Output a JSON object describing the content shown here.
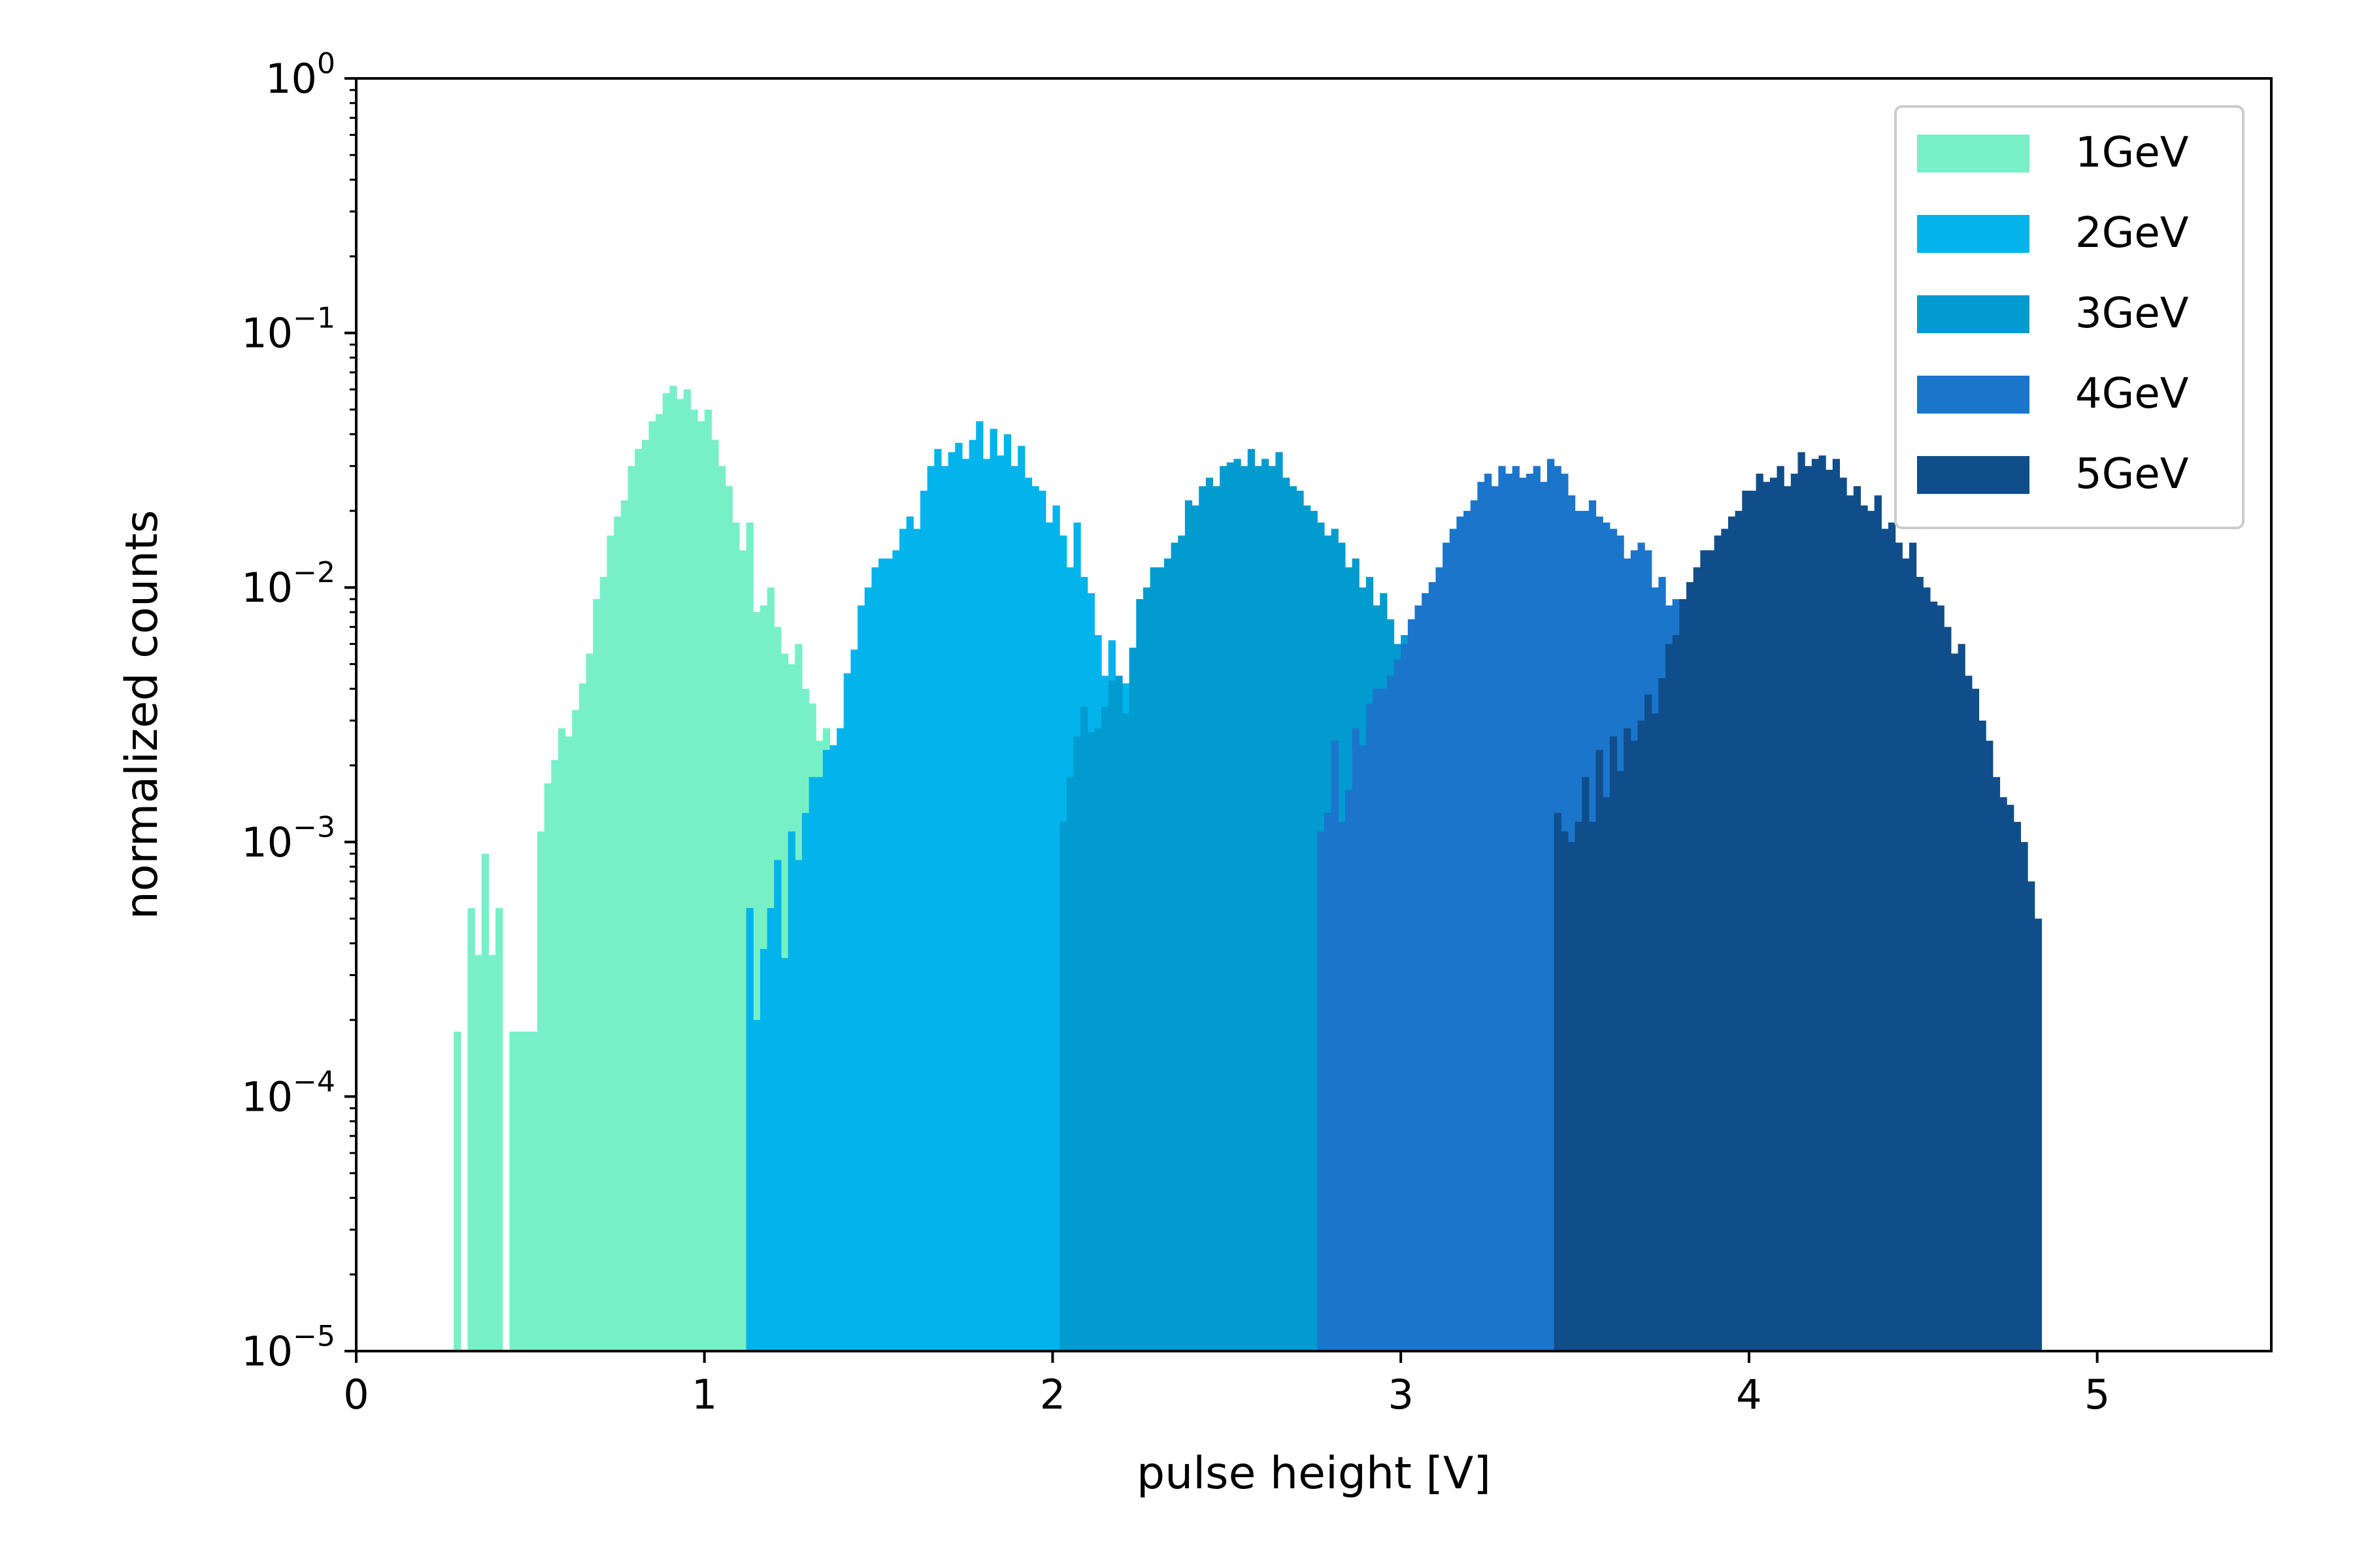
{
  "chart_data": {
    "type": "histogram",
    "title": "",
    "xlabel": "pulse height [V]",
    "ylabel": "normalized counts",
    "xlim": [
      0,
      5.5
    ],
    "ylim": [
      1e-05,
      1
    ],
    "yscale": "log",
    "grid": false,
    "legend_position": "top-right",
    "xticks": [
      0,
      1,
      2,
      3,
      4,
      5
    ],
    "xtick_labels": [
      "0",
      "1",
      "2",
      "3",
      "4",
      "5"
    ],
    "yticks": [
      1e-05,
      0.0001,
      0.001,
      0.01,
      0.1,
      1
    ],
    "ytick_labels": [
      {
        "base": "10",
        "exp": "−5"
      },
      {
        "base": "10",
        "exp": "−4"
      },
      {
        "base": "10",
        "exp": "−3"
      },
      {
        "base": "10",
        "exp": "−2"
      },
      {
        "base": "10",
        "exp": "−1"
      },
      {
        "base": "10",
        "exp": "0"
      }
    ],
    "series": [
      {
        "name": "1GeV",
        "color": "#77f0c8",
        "bin_width": 0.02,
        "bins_start": [
          0.28,
          0.32,
          0.34,
          0.36,
          0.38,
          0.4,
          0.44,
          0.46,
          0.48,
          0.5,
          0.52,
          0.54,
          0.56,
          0.58,
          0.6,
          0.62,
          0.64,
          0.66,
          0.68,
          0.7,
          0.72,
          0.74,
          0.76,
          0.78,
          0.8,
          0.82,
          0.84,
          0.86,
          0.88,
          0.9,
          0.92,
          0.94,
          0.96,
          0.98,
          1.0,
          1.02,
          1.04,
          1.06,
          1.08,
          1.1,
          1.12,
          1.14,
          1.16,
          1.18,
          1.2,
          1.22,
          1.24,
          1.26,
          1.28,
          1.3,
          1.32,
          1.34,
          1.36,
          1.38
        ],
        "counts": [
          0.00018,
          0.00055,
          0.00036,
          0.0009,
          0.00036,
          0.00055,
          0.00018,
          0.00018,
          0.00018,
          0.00018,
          0.0011,
          0.0017,
          0.0021,
          0.0028,
          0.0026,
          0.0033,
          0.0042,
          0.0055,
          0.009,
          0.011,
          0.016,
          0.019,
          0.022,
          0.03,
          0.035,
          0.038,
          0.045,
          0.048,
          0.058,
          0.062,
          0.055,
          0.06,
          0.05,
          0.045,
          0.05,
          0.038,
          0.03,
          0.025,
          0.018,
          0.014,
          0.018,
          0.008,
          0.0085,
          0.01,
          0.007,
          0.0055,
          0.005,
          0.006,
          0.004,
          0.0035,
          0.0025,
          0.0028,
          0.0022,
          0.0015
        ]
      },
      {
        "name": "2GeV",
        "color": "#03b3ec",
        "bin_width": 0.02,
        "bins_start": [
          1.12,
          1.14,
          1.16,
          1.18,
          1.2,
          1.22,
          1.24,
          1.26,
          1.28,
          1.3,
          1.32,
          1.34,
          1.36,
          1.38,
          1.4,
          1.42,
          1.44,
          1.46,
          1.48,
          1.5,
          1.52,
          1.54,
          1.56,
          1.58,
          1.6,
          1.62,
          1.64,
          1.66,
          1.68,
          1.7,
          1.72,
          1.74,
          1.76,
          1.78,
          1.8,
          1.82,
          1.84,
          1.86,
          1.88,
          1.9,
          1.92,
          1.94,
          1.96,
          1.98,
          2.0,
          2.02,
          2.04,
          2.06,
          2.08,
          2.1,
          2.12,
          2.14,
          2.16,
          2.18,
          2.2,
          2.22,
          2.24,
          2.26,
          2.28,
          2.3,
          2.32,
          2.34,
          2.36,
          2.38,
          2.4,
          2.42,
          2.44,
          2.46,
          2.48,
          2.5,
          2.52
        ],
        "counts": [
          0.00055,
          0.0002,
          0.00038,
          0.00055,
          0.00085,
          0.00035,
          0.0011,
          0.00085,
          0.0013,
          0.0018,
          0.0018,
          0.0023,
          0.0024,
          0.0028,
          0.0046,
          0.0057,
          0.0085,
          0.01,
          0.012,
          0.013,
          0.013,
          0.014,
          0.017,
          0.019,
          0.017,
          0.024,
          0.03,
          0.035,
          0.03,
          0.034,
          0.037,
          0.032,
          0.038,
          0.045,
          0.032,
          0.042,
          0.033,
          0.04,
          0.03,
          0.036,
          0.027,
          0.025,
          0.024,
          0.018,
          0.021,
          0.016,
          0.012,
          0.018,
          0.011,
          0.0095,
          0.0065,
          0.0045,
          0.0062,
          0.0032,
          0.0042,
          0.0035,
          0.0028,
          0.0028,
          0.0025,
          0.0026,
          0.0022,
          0.0019,
          0.0018,
          0.0013,
          0.0015,
          0.0012,
          0.0011,
          0.0012,
          0.0009,
          0.0008,
          0.0007
        ]
      },
      {
        "name": "3GeV",
        "color": "#029bd0",
        "bin_width": 0.02,
        "bins_start": [
          2.02,
          2.04,
          2.06,
          2.08,
          2.1,
          2.12,
          2.14,
          2.16,
          2.18,
          2.2,
          2.22,
          2.24,
          2.26,
          2.28,
          2.3,
          2.32,
          2.34,
          2.36,
          2.38,
          2.4,
          2.42,
          2.44,
          2.46,
          2.48,
          2.5,
          2.52,
          2.54,
          2.56,
          2.58,
          2.6,
          2.62,
          2.64,
          2.66,
          2.68,
          2.7,
          2.72,
          2.74,
          2.76,
          2.78,
          2.8,
          2.82,
          2.84,
          2.86,
          2.88,
          2.9,
          2.92,
          2.94,
          2.96,
          2.98,
          3.0,
          3.02,
          3.04,
          3.06,
          3.08,
          3.1,
          3.12,
          3.14,
          3.16,
          3.18
        ],
        "counts": [
          0.0012,
          0.0018,
          0.0026,
          0.0034,
          0.0027,
          0.0028,
          0.0034,
          0.0043,
          0.0045,
          0.0032,
          0.0058,
          0.009,
          0.01,
          0.012,
          0.012,
          0.013,
          0.015,
          0.016,
          0.022,
          0.021,
          0.025,
          0.027,
          0.025,
          0.03,
          0.031,
          0.032,
          0.03,
          0.035,
          0.03,
          0.032,
          0.03,
          0.034,
          0.027,
          0.025,
          0.024,
          0.021,
          0.02,
          0.018,
          0.016,
          0.017,
          0.015,
          0.012,
          0.013,
          0.01,
          0.011,
          0.0085,
          0.0095,
          0.0075,
          0.006,
          0.0065,
          0.0045,
          0.004,
          0.003,
          0.0032,
          0.0023,
          0.0018,
          0.0016,
          0.0011,
          0.0009
        ]
      },
      {
        "name": "4GeV",
        "color": "#1b75cb",
        "bin_width": 0.02,
        "bins_start": [
          2.76,
          2.78,
          2.8,
          2.82,
          2.84,
          2.86,
          2.88,
          2.9,
          2.92,
          2.94,
          2.96,
          2.98,
          3.0,
          3.02,
          3.04,
          3.06,
          3.08,
          3.1,
          3.12,
          3.14,
          3.16,
          3.18,
          3.2,
          3.22,
          3.24,
          3.26,
          3.28,
          3.3,
          3.32,
          3.34,
          3.36,
          3.38,
          3.4,
          3.42,
          3.44,
          3.46,
          3.48,
          3.5,
          3.52,
          3.54,
          3.56,
          3.58,
          3.6,
          3.62,
          3.64,
          3.66,
          3.68,
          3.7,
          3.72,
          3.74,
          3.76,
          3.78,
          3.8,
          3.82,
          3.84,
          3.86,
          3.88,
          3.9,
          3.92,
          3.94
        ],
        "counts": [
          0.0011,
          0.0013,
          0.0025,
          0.0012,
          0.0016,
          0.0028,
          0.0024,
          0.0035,
          0.004,
          0.004,
          0.0045,
          0.0052,
          0.006,
          0.0075,
          0.0085,
          0.0095,
          0.0105,
          0.012,
          0.015,
          0.017,
          0.019,
          0.02,
          0.022,
          0.026,
          0.028,
          0.025,
          0.03,
          0.028,
          0.03,
          0.027,
          0.028,
          0.03,
          0.026,
          0.032,
          0.03,
          0.028,
          0.023,
          0.02,
          0.02,
          0.022,
          0.019,
          0.018,
          0.017,
          0.016,
          0.013,
          0.014,
          0.015,
          0.014,
          0.01,
          0.011,
          0.0085,
          0.009,
          0.0065,
          0.006,
          0.0065,
          0.0045,
          0.004,
          0.0035,
          0.003,
          0.0025
        ]
      },
      {
        "name": "5GeV",
        "color": "#104e8b",
        "bin_width": 0.02,
        "bins_start": [
          3.44,
          3.46,
          3.48,
          3.5,
          3.52,
          3.54,
          3.56,
          3.58,
          3.6,
          3.62,
          3.64,
          3.66,
          3.68,
          3.7,
          3.72,
          3.74,
          3.76,
          3.78,
          3.8,
          3.82,
          3.84,
          3.86,
          3.88,
          3.9,
          3.92,
          3.94,
          3.96,
          3.98,
          4.0,
          4.02,
          4.04,
          4.06,
          4.08,
          4.1,
          4.12,
          4.14,
          4.16,
          4.18,
          4.2,
          4.22,
          4.24,
          4.26,
          4.28,
          4.3,
          4.32,
          4.34,
          4.36,
          4.38,
          4.4,
          4.42,
          4.44,
          4.46,
          4.48,
          4.5,
          4.52,
          4.54,
          4.56,
          4.58,
          4.6,
          4.62,
          4.64,
          4.66,
          4.68,
          4.7,
          4.72,
          4.74,
          4.76,
          4.78,
          4.8,
          4.82
        ],
        "counts": [
          0.0013,
          0.0011,
          0.001,
          0.0012,
          0.0018,
          0.0012,
          0.0023,
          0.0015,
          0.0026,
          0.0019,
          0.0028,
          0.0025,
          0.003,
          0.0038,
          0.0032,
          0.0044,
          0.006,
          0.0065,
          0.009,
          0.0105,
          0.012,
          0.014,
          0.014,
          0.016,
          0.017,
          0.019,
          0.02,
          0.024,
          0.024,
          0.028,
          0.026,
          0.027,
          0.03,
          0.025,
          0.028,
          0.034,
          0.03,
          0.032,
          0.033,
          0.029,
          0.032,
          0.027,
          0.023,
          0.025,
          0.021,
          0.02,
          0.023,
          0.017,
          0.018,
          0.015,
          0.013,
          0.015,
          0.011,
          0.01,
          0.0088,
          0.0085,
          0.007,
          0.0055,
          0.006,
          0.0045,
          0.004,
          0.003,
          0.0025,
          0.0018,
          0.0015,
          0.0014,
          0.0012,
          0.001,
          0.0007,
          0.0005
        ]
      }
    ]
  }
}
